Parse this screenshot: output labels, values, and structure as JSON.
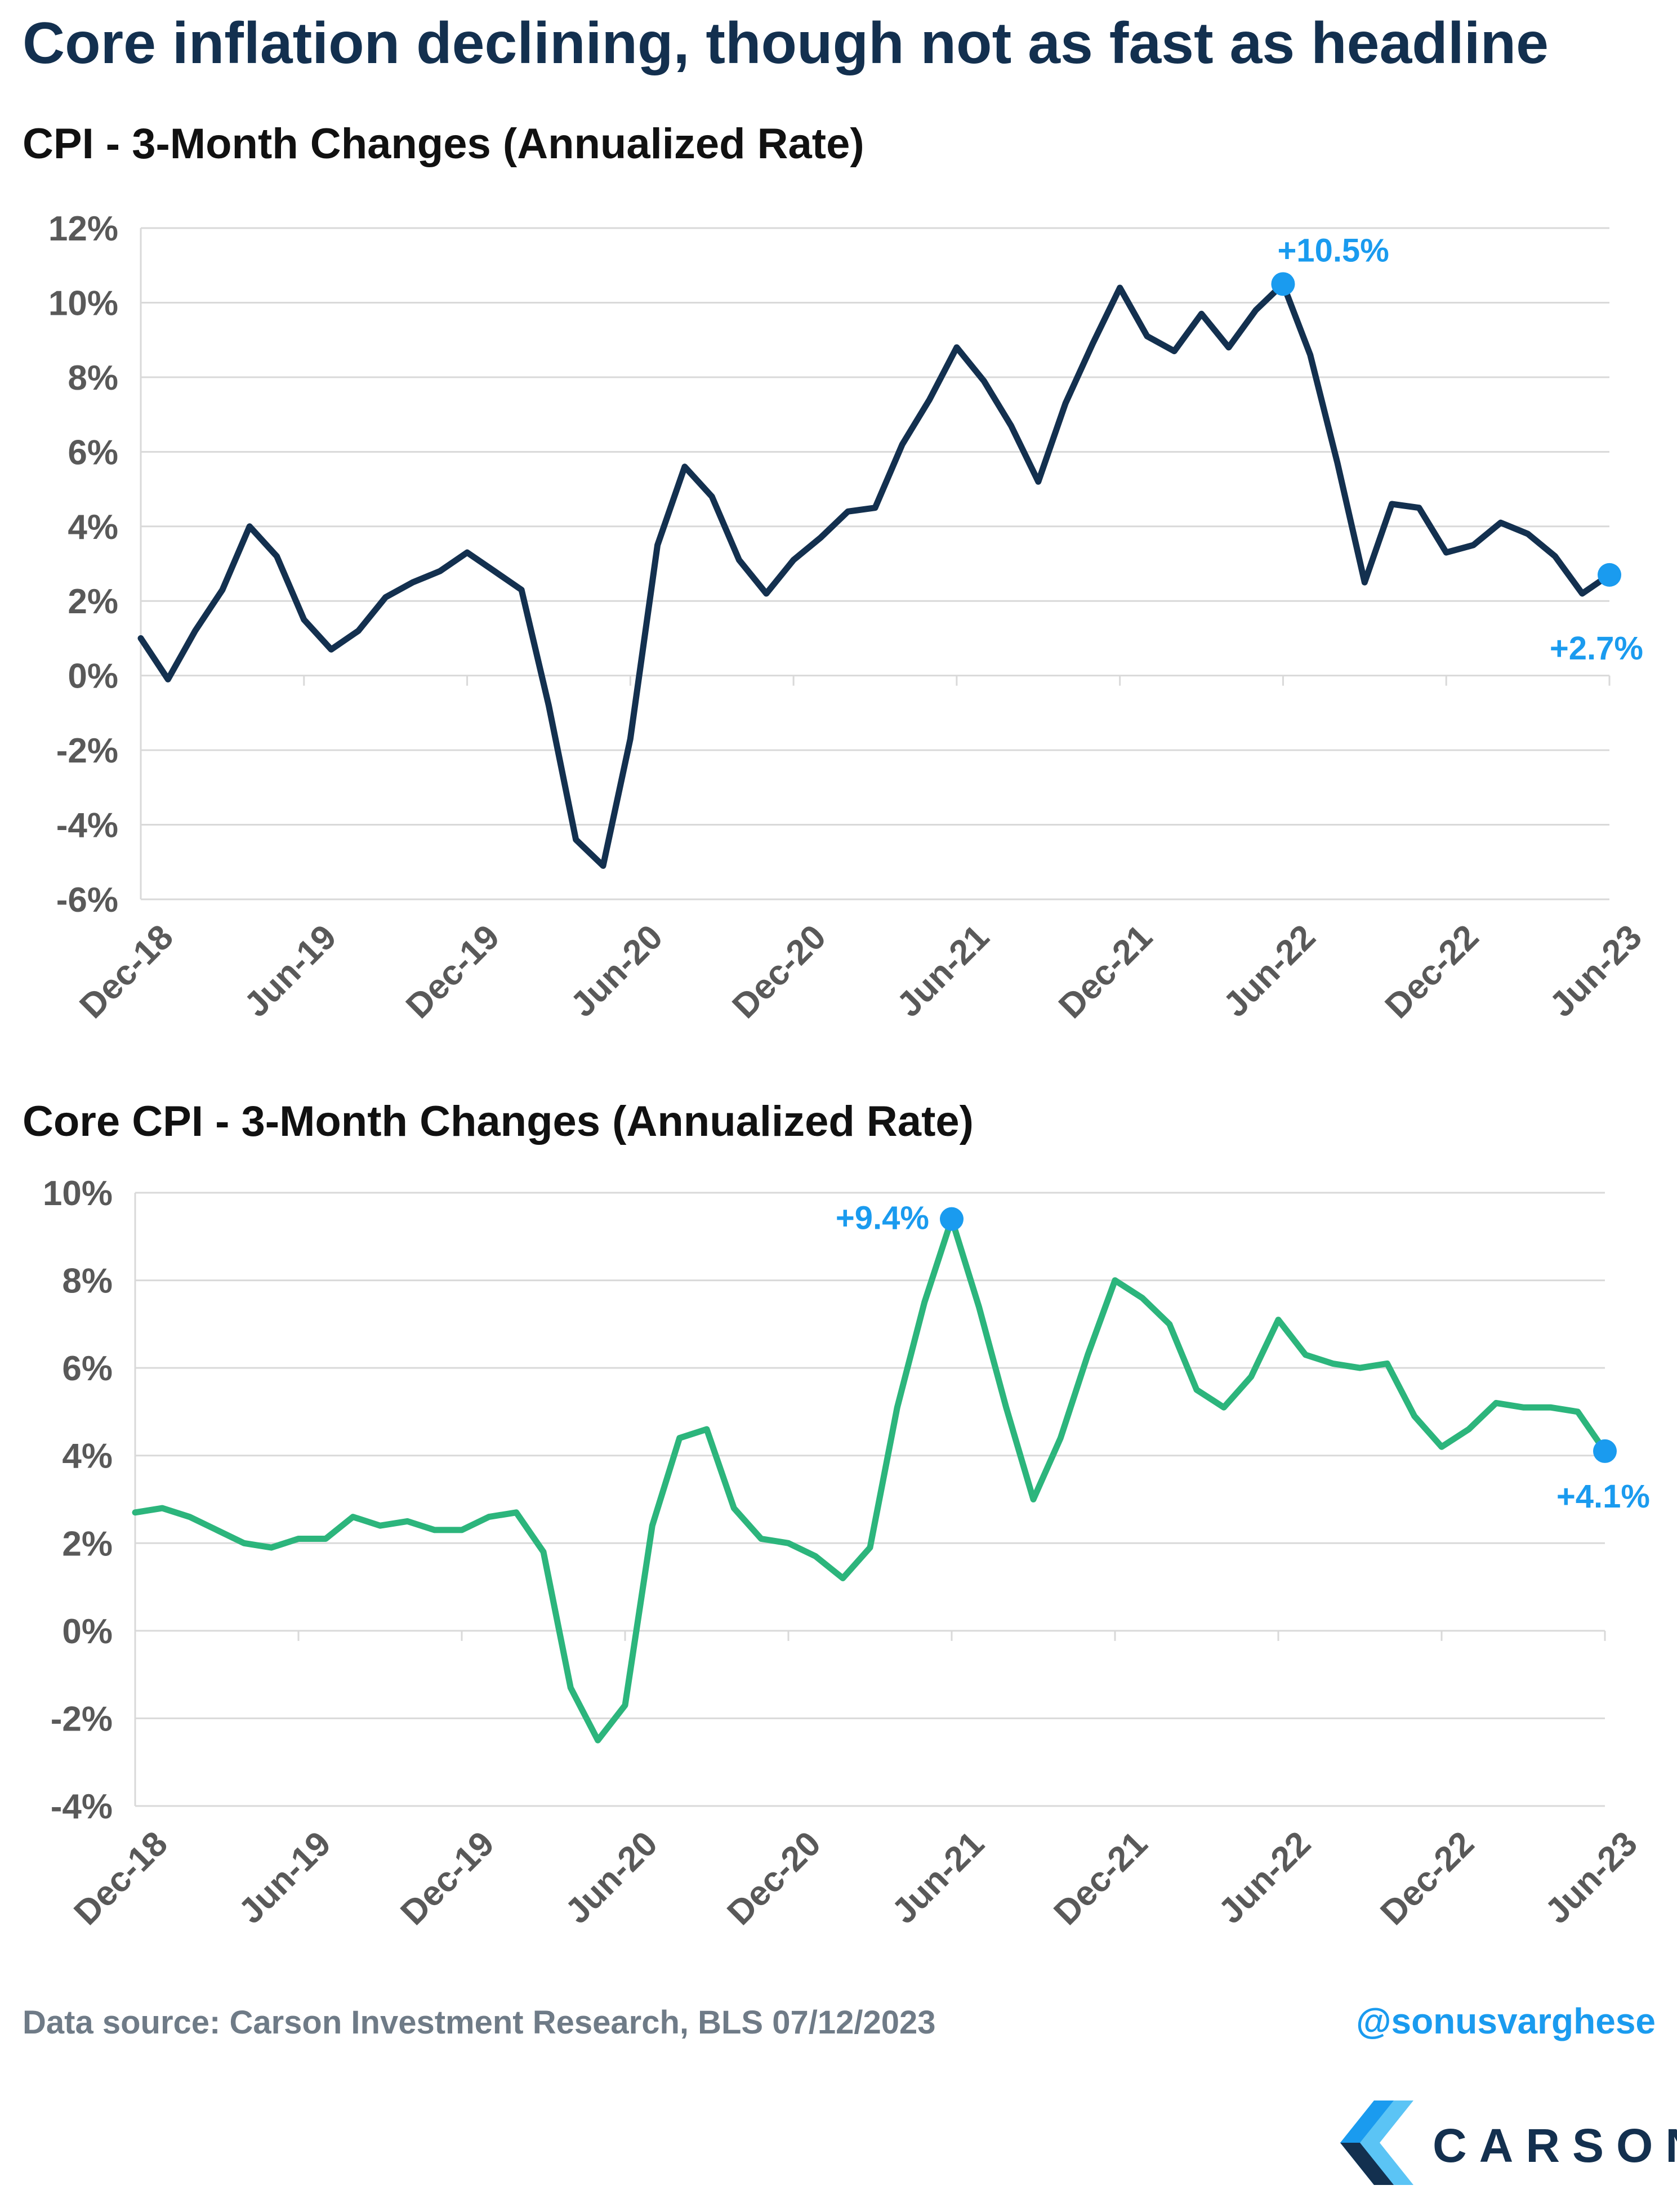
{
  "title": "Core inflation declining, though not as fast as headline",
  "footer": {
    "source": "Data source: Carson Investment Research, BLS   07/12/2023",
    "handle": "@sonusvarghese",
    "brand": "CARSON"
  },
  "colors": {
    "title": "#13304f",
    "cpi_line": "#13304f",
    "core_line": "#2cb57c",
    "highlight": "#1a9bef",
    "grid": "#d9d9d9",
    "tick_text": "#595959"
  },
  "icons": [
    "carson-logo-icon"
  ],
  "chart_data": [
    {
      "type": "line",
      "title": "CPI - 3-Month Changes (Annualized Rate)",
      "xlabel": "",
      "ylabel": "",
      "ylim": [
        -6,
        12
      ],
      "yticks": [
        -6,
        -4,
        -2,
        0,
        2,
        4,
        6,
        8,
        10,
        12
      ],
      "ytick_labels": [
        "-6%",
        "-4%",
        "-2%",
        "0%",
        "2%",
        "4%",
        "6%",
        "8%",
        "10%",
        "12%"
      ],
      "xtick_labels": [
        "Dec-18",
        "Jun-19",
        "Dec-19",
        "Jun-20",
        "Dec-20",
        "Jun-21",
        "Dec-21",
        "Jun-22",
        "Dec-22",
        "Jun-23"
      ],
      "x": [
        "Dec-18",
        "Jan-19",
        "Feb-19",
        "Mar-19",
        "Apr-19",
        "May-19",
        "Jun-19",
        "Jul-19",
        "Aug-19",
        "Sep-19",
        "Oct-19",
        "Nov-19",
        "Dec-19",
        "Jan-20",
        "Feb-20",
        "Mar-20",
        "Apr-20",
        "May-20",
        "Jun-20",
        "Jul-20",
        "Aug-20",
        "Sep-20",
        "Oct-20",
        "Nov-20",
        "Dec-20",
        "Jan-21",
        "Feb-21",
        "Mar-21",
        "Apr-21",
        "May-21",
        "Jun-21",
        "Jul-21",
        "Aug-21",
        "Sep-21",
        "Oct-21",
        "Nov-21",
        "Dec-21",
        "Jan-22",
        "Feb-22",
        "Mar-22",
        "Apr-22",
        "May-22",
        "Jun-22",
        "Jul-22",
        "Aug-22",
        "Sep-22",
        "Oct-22",
        "Nov-22",
        "Dec-22",
        "Jan-23",
        "Feb-23",
        "Mar-23",
        "Apr-23",
        "May-23",
        "Jun-23"
      ],
      "series": [
        {
          "values": [
            1.0,
            -0.1,
            1.2,
            2.3,
            4.0,
            3.2,
            1.5,
            0.7,
            1.2,
            2.1,
            2.5,
            2.8,
            3.3,
            2.8,
            2.3,
            -0.8,
            -4.4,
            -5.1,
            -1.7,
            3.5,
            5.6,
            4.8,
            3.1,
            2.2,
            3.1,
            3.7,
            4.4,
            4.5,
            6.2,
            7.4,
            8.8,
            7.9,
            6.7,
            5.2,
            7.3,
            8.9,
            10.4,
            9.1,
            8.7,
            9.7,
            8.8,
            9.8,
            10.5,
            8.6,
            5.7,
            2.5,
            4.6,
            4.5,
            3.3,
            3.5,
            4.1,
            3.8,
            3.2,
            2.2,
            2.7
          ]
        }
      ],
      "annotations": [
        {
          "x": "Jun-22",
          "value": 10.5,
          "label": "+10.5%"
        },
        {
          "x": "Jun-23",
          "value": 2.7,
          "label": "+2.7%"
        }
      ],
      "grid": true
    },
    {
      "type": "line",
      "title": "Core CPI - 3-Month Changes (Annualized Rate)",
      "xlabel": "",
      "ylabel": "",
      "ylim": [
        -4,
        10
      ],
      "yticks": [
        -4,
        -2,
        0,
        2,
        4,
        6,
        8,
        10
      ],
      "ytick_labels": [
        "-4%",
        "-2%",
        "0%",
        "2%",
        "4%",
        "6%",
        "8%",
        "10%"
      ],
      "xtick_labels": [
        "Dec-18",
        "Jun-19",
        "Dec-19",
        "Jun-20",
        "Dec-20",
        "Jun-21",
        "Dec-21",
        "Jun-22",
        "Dec-22",
        "Jun-23"
      ],
      "x": [
        "Dec-18",
        "Jan-19",
        "Feb-19",
        "Mar-19",
        "Apr-19",
        "May-19",
        "Jun-19",
        "Jul-19",
        "Aug-19",
        "Sep-19",
        "Oct-19",
        "Nov-19",
        "Dec-19",
        "Jan-20",
        "Feb-20",
        "Mar-20",
        "Apr-20",
        "May-20",
        "Jun-20",
        "Jul-20",
        "Aug-20",
        "Sep-20",
        "Oct-20",
        "Nov-20",
        "Dec-20",
        "Jan-21",
        "Feb-21",
        "Mar-21",
        "Apr-21",
        "May-21",
        "Jun-21",
        "Jul-21",
        "Aug-21",
        "Sep-21",
        "Oct-21",
        "Nov-21",
        "Dec-21",
        "Jan-22",
        "Feb-22",
        "Mar-22",
        "Apr-22",
        "May-22",
        "Jun-22",
        "Jul-22",
        "Aug-22",
        "Sep-22",
        "Oct-22",
        "Nov-22",
        "Dec-22",
        "Jan-23",
        "Feb-23",
        "Mar-23",
        "Apr-23",
        "May-23",
        "Jun-23"
      ],
      "series": [
        {
          "values": [
            2.7,
            2.8,
            2.6,
            2.3,
            2.0,
            1.9,
            2.1,
            2.1,
            2.6,
            2.4,
            2.5,
            2.3,
            2.3,
            2.6,
            2.7,
            1.8,
            -1.3,
            -2.5,
            -1.7,
            2.4,
            4.4,
            4.6,
            2.8,
            2.1,
            2.0,
            1.7,
            1.2,
            1.9,
            5.1,
            7.5,
            9.4,
            7.4,
            5.1,
            3.0,
            4.4,
            6.3,
            8.0,
            7.6,
            7.0,
            5.5,
            5.1,
            5.8,
            7.1,
            6.3,
            6.1,
            6.0,
            6.1,
            4.9,
            4.2,
            4.6,
            5.2,
            5.1,
            5.1,
            5.0,
            4.1
          ]
        }
      ],
      "annotations": [
        {
          "x": "Jun-21",
          "value": 9.4,
          "label": "+9.4%"
        },
        {
          "x": "Jun-23",
          "value": 4.1,
          "label": "+4.1%"
        }
      ],
      "grid": true
    }
  ]
}
